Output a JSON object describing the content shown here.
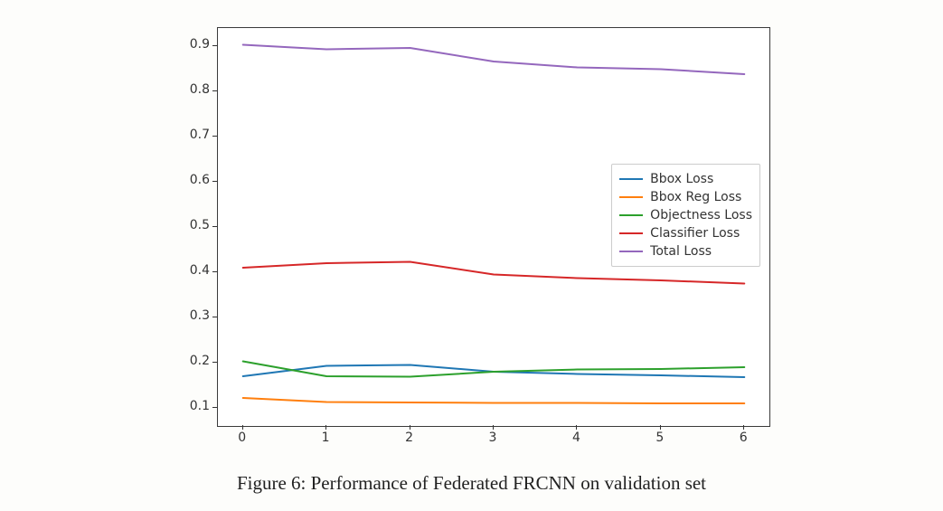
{
  "caption": "Figure 6: Performance of Federated FRCNN on validation set",
  "caption_fontsize": 21,
  "chart": {
    "type": "line",
    "background_color": "#ffffff",
    "border_color": "#3a3a3a",
    "xlim": [
      -0.3,
      6.3
    ],
    "ylim": [
      0.06,
      0.94
    ],
    "xticks": [
      0,
      1,
      2,
      3,
      4,
      5,
      6
    ],
    "yticks": [
      0.1,
      0.2,
      0.3,
      0.4,
      0.5,
      0.6,
      0.7,
      0.8,
      0.9
    ],
    "tick_fontsize": 14,
    "tick_color": "#333333",
    "x": [
      0,
      1,
      2,
      3,
      4,
      5,
      6
    ],
    "series": [
      {
        "label": "Bbox Loss",
        "color": "#1f77b4",
        "y": [
          0.17,
          0.193,
          0.195,
          0.18,
          0.175,
          0.172,
          0.168
        ]
      },
      {
        "label": "Bbox Reg Loss",
        "color": "#ff7f0e",
        "y": [
          0.122,
          0.113,
          0.112,
          0.111,
          0.111,
          0.11,
          0.11
        ]
      },
      {
        "label": "Objectness Loss",
        "color": "#2ca02c",
        "y": [
          0.203,
          0.17,
          0.169,
          0.18,
          0.185,
          0.186,
          0.19
        ]
      },
      {
        "label": "Classifier Loss",
        "color": "#d62728",
        "y": [
          0.41,
          0.42,
          0.423,
          0.395,
          0.387,
          0.382,
          0.375
        ]
      },
      {
        "label": "Total Loss",
        "color": "#9467bd",
        "y": [
          0.903,
          0.893,
          0.896,
          0.866,
          0.853,
          0.849,
          0.838
        ]
      }
    ],
    "line_width": 2,
    "legend": {
      "position": "right-middle",
      "border_color": "#cccccc",
      "background_color": "#ffffff",
      "fontsize": 14
    }
  }
}
